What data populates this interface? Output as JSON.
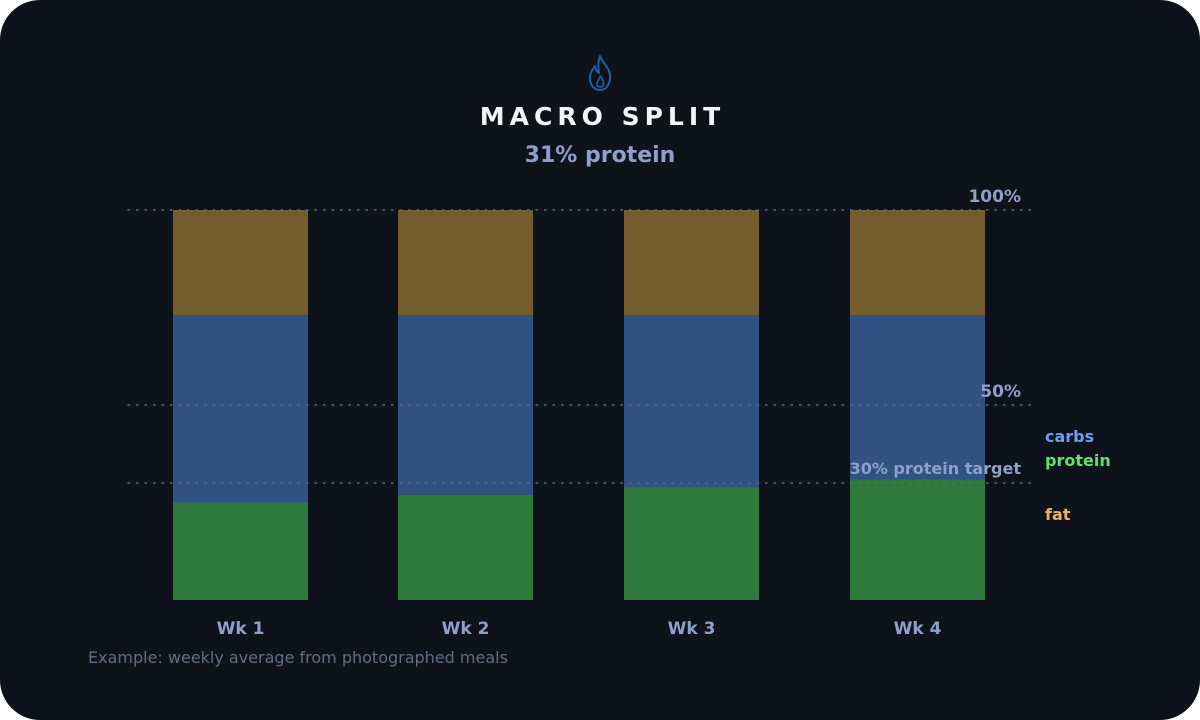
{
  "header": {
    "icon": "flame-icon",
    "title": "MACRO SPLIT",
    "subtitle": "31% protein"
  },
  "footnote": "Example: weekly average from photographed meals",
  "colors": {
    "background": "#0e131b",
    "protein": "#2e7a3d",
    "carbs": "#305384",
    "fat": "#745c2d",
    "legend_protein": "#5fe36a",
    "legend_carbs": "#6f9ef2",
    "legend_fat": "#f0b15a",
    "axis_text": "#8fa0c8",
    "icon": "#1d5fa8"
  },
  "chart_data": {
    "type": "bar",
    "stacked": true,
    "categories": [
      "Wk 1",
      "Wk 2",
      "Wk 3",
      "Wk 4"
    ],
    "series": [
      {
        "name": "protein",
        "values": [
          25,
          27,
          29,
          31
        ]
      },
      {
        "name": "carbs",
        "values": [
          48,
          46,
          44,
          42
        ]
      },
      {
        "name": "fat",
        "values": [
          27,
          27,
          27,
          27
        ]
      }
    ],
    "ylim": [
      0,
      100
    ],
    "yticks": [
      {
        "value": 100,
        "label": "100%"
      },
      {
        "value": 50,
        "label": "50%"
      }
    ],
    "reference_line": {
      "value": 30,
      "label": "30% protein target"
    },
    "legend": {
      "placement": "right",
      "order": [
        "carbs",
        "protein",
        "fat"
      ]
    },
    "grid": false
  }
}
